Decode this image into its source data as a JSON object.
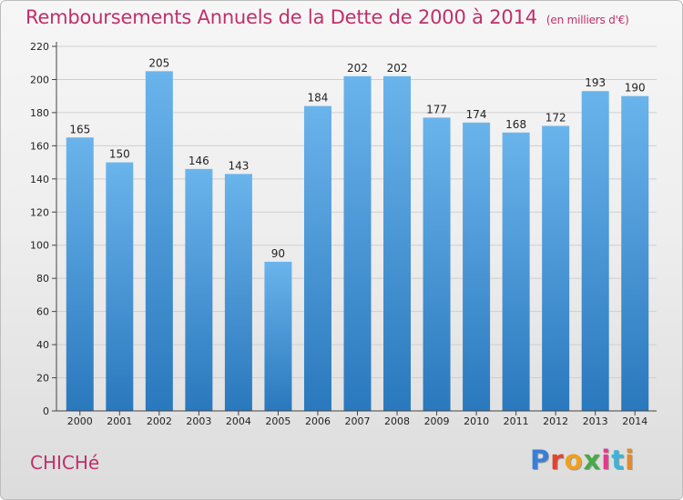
{
  "header": {
    "title": "Remboursements Annuels de la Dette de 2000 à 2014",
    "subtitle": "(en milliers d'€)"
  },
  "footer": {
    "commune": "CHICHé",
    "logo": "Proxiti",
    "logo_letters": [
      "P",
      "r",
      "o",
      "x",
      "i",
      "t",
      "i"
    ],
    "logo_colors": [
      "#3a7fd5",
      "#e0442e",
      "#f0a01e",
      "#4aa84a",
      "#e23b8c",
      "#3fb2d8",
      "#e58a2a"
    ]
  },
  "chart_data": {
    "type": "bar",
    "categories": [
      "2000",
      "2001",
      "2002",
      "2003",
      "2004",
      "2005",
      "2006",
      "2007",
      "2008",
      "2009",
      "2010",
      "2011",
      "2012",
      "2013",
      "2014"
    ],
    "values": [
      165,
      150,
      205,
      146,
      143,
      90,
      184,
      202,
      202,
      177,
      174,
      168,
      172,
      193,
      190
    ],
    "ylim": [
      0,
      220
    ],
    "yticks": [
      0,
      20,
      40,
      60,
      80,
      100,
      120,
      140,
      160,
      180,
      200,
      220
    ],
    "grid": true,
    "bar_color_top": "#6ab4ec",
    "bar_color_bottom": "#2a78bd"
  }
}
